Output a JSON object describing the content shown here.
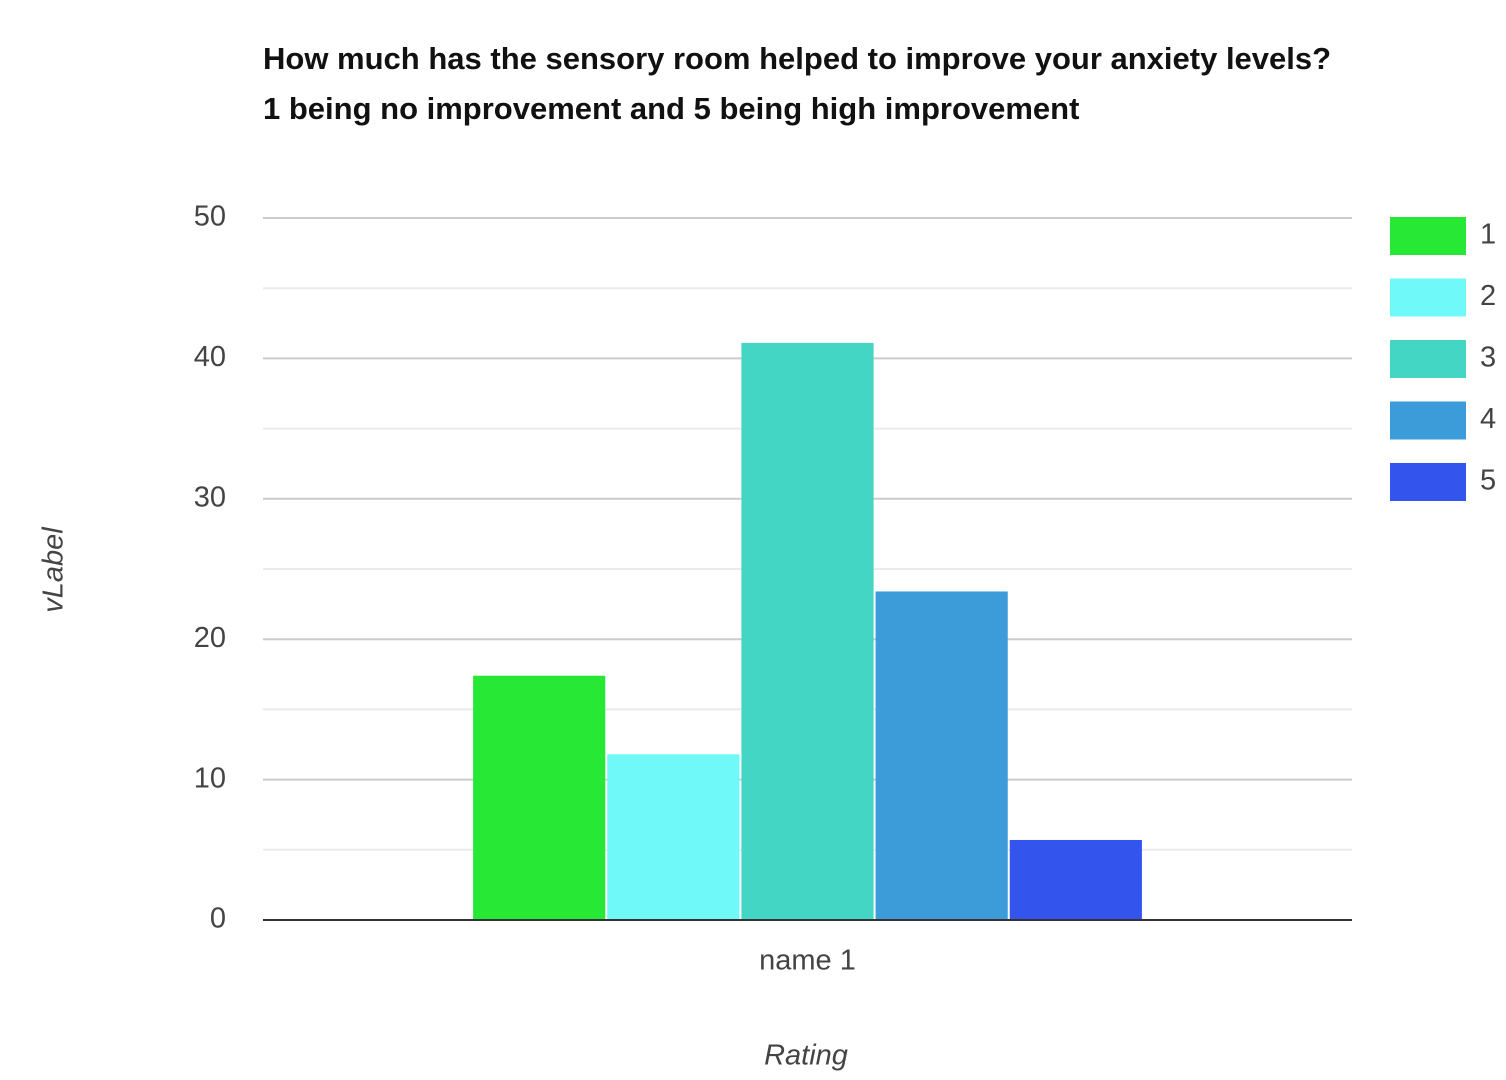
{
  "chart_data": {
    "type": "bar",
    "title": "How much has the sensory room helped to improve your anxiety levels? 1 being no improvement and 5 being high improvement",
    "x_label": "Rating",
    "y_label": "vLabel",
    "categories": [
      "name 1"
    ],
    "series": [
      {
        "name": "1",
        "color": "#27e835",
        "values": [
          17.4
        ]
      },
      {
        "name": "2",
        "color": "#6ff9f9",
        "values": [
          11.8
        ]
      },
      {
        "name": "3",
        "color": "#43d6c4",
        "values": [
          41.1
        ]
      },
      {
        "name": "4",
        "color": "#3b9cd9",
        "values": [
          23.4
        ]
      },
      {
        "name": "5",
        "color": "#3355ee",
        "values": [
          5.7
        ]
      }
    ],
    "ylim": [
      0,
      50
    ],
    "yticks": [
      0,
      10,
      20,
      30,
      40,
      50
    ],
    "minor_yticks": [
      5,
      15,
      25,
      35,
      45
    ],
    "grid": true,
    "legend": "right"
  }
}
